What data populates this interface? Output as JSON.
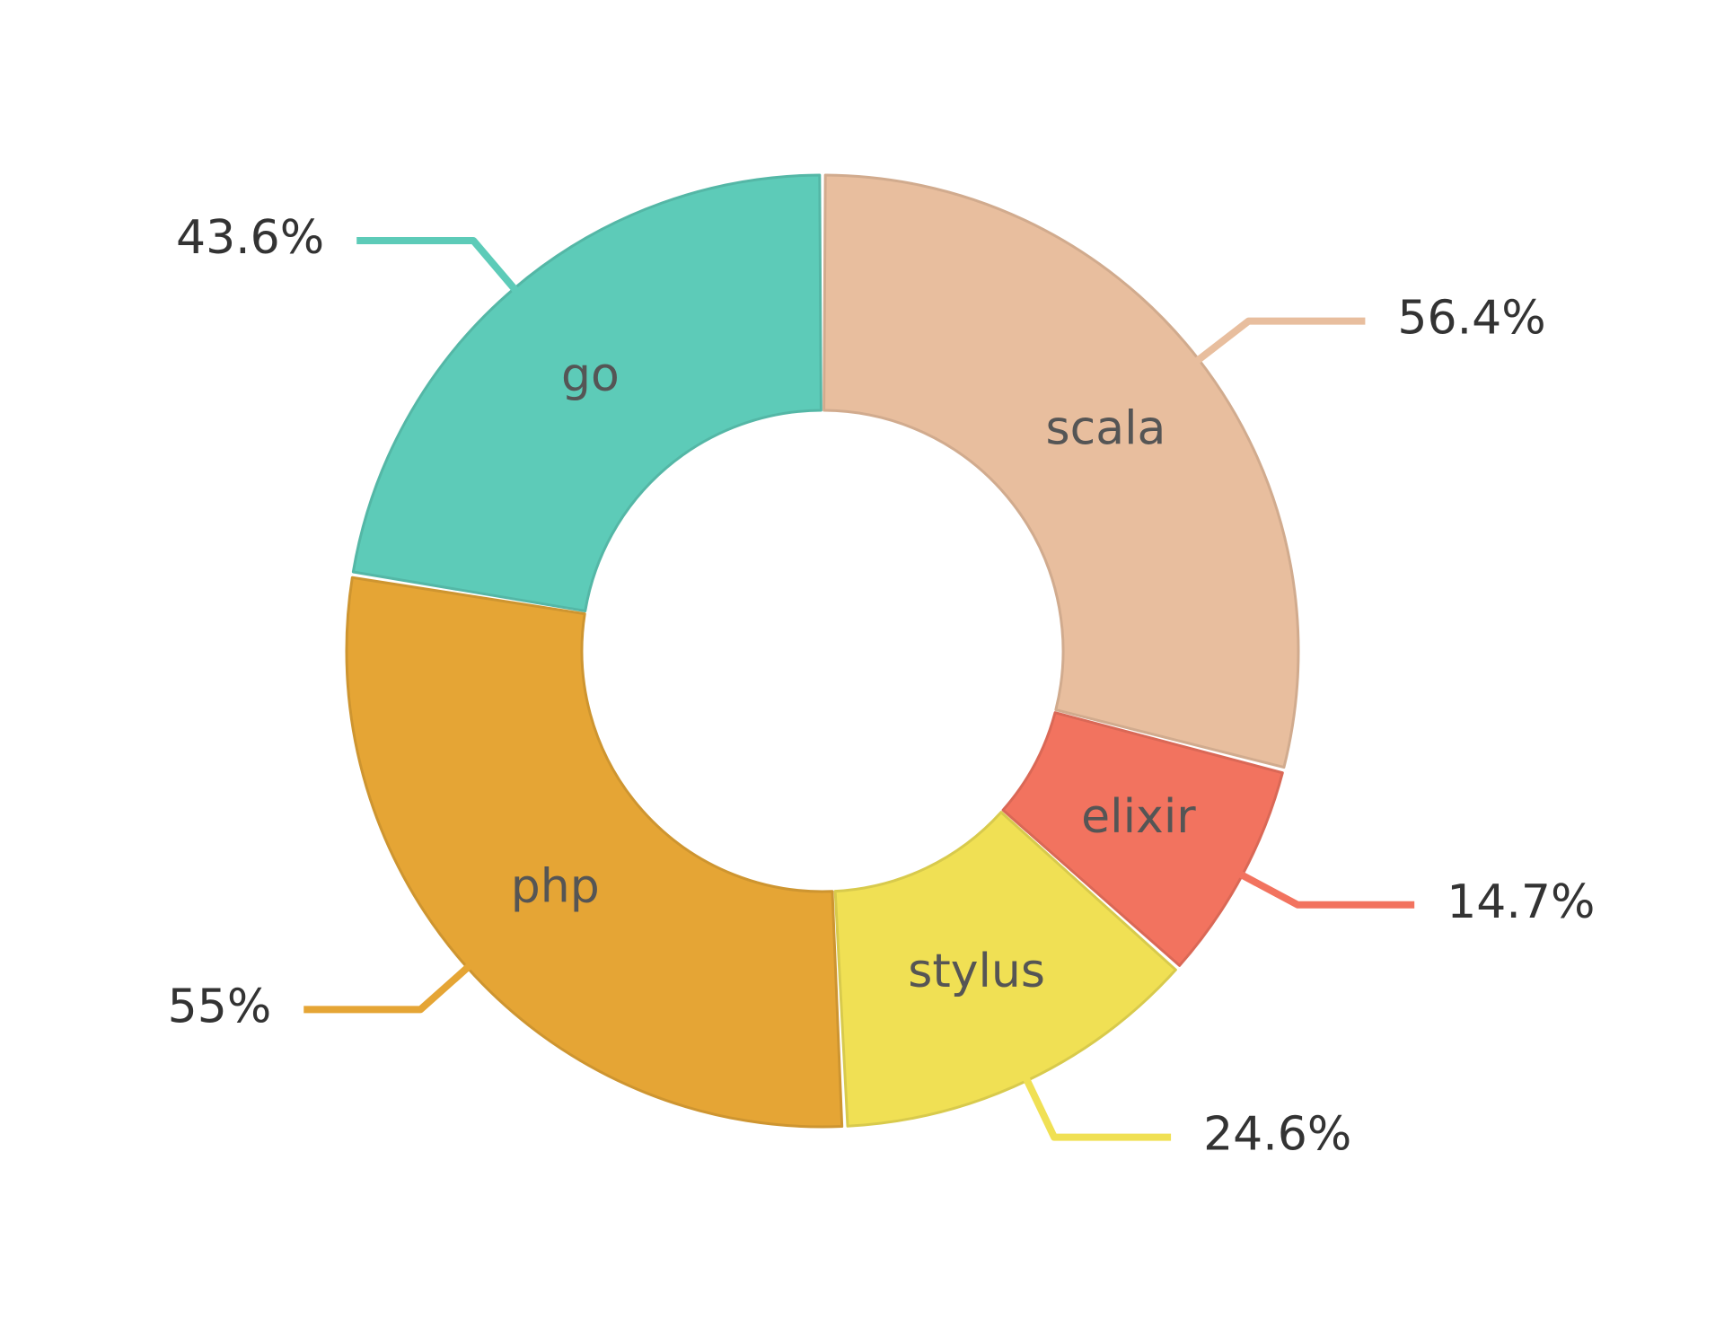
{
  "chart_data": {
    "type": "pie",
    "variant": "donut",
    "title": "",
    "legend": "none",
    "slices": [
      {
        "name": "scala",
        "value": 56.4,
        "label": "56.4%",
        "color": "#E8BE9E"
      },
      {
        "name": "elixir",
        "value": 14.7,
        "label": "14.7%",
        "color": "#F2735F"
      },
      {
        "name": "stylus",
        "value": 24.6,
        "label": "24.6%",
        "color": "#F0E054"
      },
      {
        "name": "php",
        "value": 55,
        "label": "55%",
        "color": "#E5A535"
      },
      {
        "name": "go",
        "value": 43.6,
        "label": "43.6%",
        "color": "#5DCBB8"
      }
    ]
  }
}
